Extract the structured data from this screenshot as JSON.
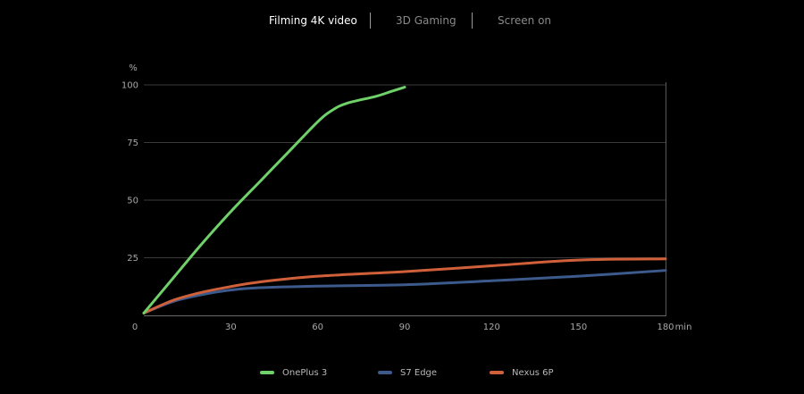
{
  "tabs": [
    {
      "label": "Filming 4K video",
      "active": true
    },
    {
      "label": "3D Gaming",
      "active": false
    },
    {
      "label": "Screen on",
      "active": false
    }
  ],
  "chart_data": {
    "type": "line",
    "y_unit": "%",
    "x_unit": "min",
    "xlim": [
      0,
      180
    ],
    "ylim": [
      0,
      100
    ],
    "x_ticks": [
      0,
      30,
      60,
      90,
      120,
      150,
      180
    ],
    "y_ticks": [
      25,
      50,
      75,
      100
    ],
    "grid": "horizontal",
    "legend_position": "bottom-center",
    "series": [
      {
        "name": "OnePlus 3",
        "color": "#6fd16a",
        "points": [
          [
            0,
            1
          ],
          [
            10,
            16
          ],
          [
            20,
            31
          ],
          [
            30,
            45
          ],
          [
            40,
            58
          ],
          [
            50,
            71
          ],
          [
            60,
            84
          ],
          [
            65,
            89
          ],
          [
            70,
            92
          ],
          [
            80,
            95
          ],
          [
            85,
            97
          ],
          [
            90,
            99
          ]
        ]
      },
      {
        "name": "S7 Edge",
        "color": "#3c5a8c",
        "points": [
          [
            0,
            1
          ],
          [
            10,
            6
          ],
          [
            20,
            9
          ],
          [
            30,
            11
          ],
          [
            40,
            12
          ],
          [
            60,
            12.7
          ],
          [
            90,
            13.3
          ],
          [
            120,
            15
          ],
          [
            150,
            17
          ],
          [
            180,
            19.5
          ]
        ]
      },
      {
        "name": "Nexus 6P",
        "color": "#d0603a",
        "points": [
          [
            0,
            1
          ],
          [
            10,
            6.5
          ],
          [
            20,
            10
          ],
          [
            30,
            12.5
          ],
          [
            40,
            14.5
          ],
          [
            60,
            17
          ],
          [
            90,
            19
          ],
          [
            120,
            21.5
          ],
          [
            150,
            24
          ],
          [
            180,
            24.5
          ]
        ]
      }
    ]
  }
}
